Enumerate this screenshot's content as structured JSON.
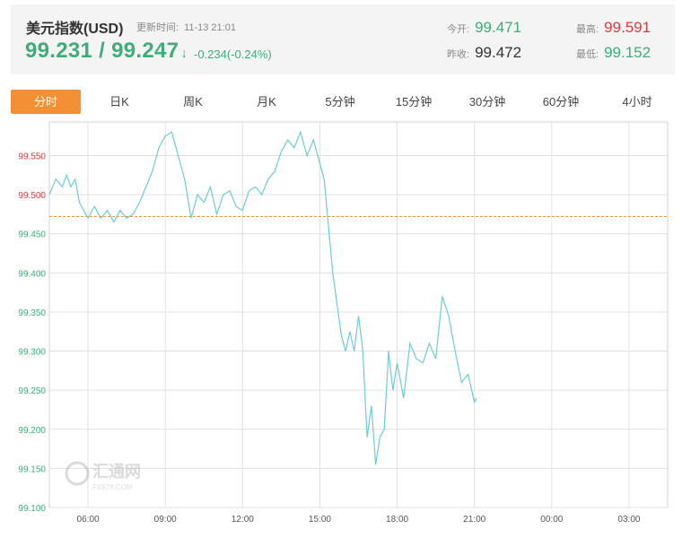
{
  "header": {
    "title": "美元指数(USD)",
    "update_label": "更新时间:",
    "update_time": "11-13 21:01",
    "price": "99.231 / 99.247",
    "arrow": "↓",
    "change": "-0.234(-0.24%)",
    "open_label": "今开:",
    "open_value": "99.471",
    "prev_close_label": "昨收:",
    "prev_close_value": "99.472",
    "high_label": "最高:",
    "high_value": "99.591",
    "low_label": "最低:",
    "low_value": "99.152"
  },
  "tabs": [
    "分时",
    "日K",
    "周K",
    "月K",
    "5分钟",
    "15分钟",
    "30分钟",
    "60分钟",
    "4小时"
  ],
  "active_tab": "分时",
  "watermark": {
    "text": "汇通网",
    "subtext": "FX678.COM"
  },
  "colors": {
    "line": "#6dcbd7",
    "reference": "#f39035",
    "grid": "#e0e0e0",
    "above_ref_label": "#e4393c",
    "below_ref_label": "#3cae78",
    "accent_green": "#3cae78",
    "accent_red": "#e4393c",
    "active_tab": "#f39035"
  },
  "chart_data": {
    "type": "line",
    "title": "",
    "xlabel": "",
    "ylabel": "",
    "x_range": [
      "04:30",
      "04:30 (next day)"
    ],
    "x_ticks": [
      "06:00",
      "09:00",
      "12:00",
      "15:00",
      "18:00",
      "21:00",
      "00:00",
      "03:00"
    ],
    "y_ticks": [
      99.55,
      99.5,
      99.45,
      99.4,
      99.35,
      99.3,
      99.25,
      99.2,
      99.15,
      99.1
    ],
    "y_tick_labels": [
      "99.550",
      "99.500",
      "99.450",
      "99.400",
      "99.350",
      "99.300",
      "99.250",
      "99.200",
      "99.150",
      "99.100"
    ],
    "ylim": [
      99.1,
      99.593
    ],
    "grid": true,
    "reference_line": {
      "value": 99.472,
      "style": "dashed"
    },
    "series": [
      {
        "x": [
          "04:30",
          "04:45",
          "05:00",
          "05:10",
          "05:20",
          "05:30",
          "05:40",
          "05:50",
          "06:00",
          "06:15",
          "06:30",
          "06:45",
          "07:00",
          "07:15",
          "07:30",
          "07:45",
          "08:00",
          "08:15",
          "08:30",
          "08:45",
          "09:00",
          "09:15",
          "09:30",
          "09:45",
          "10:00",
          "10:15",
          "10:30",
          "10:45",
          "11:00",
          "11:15",
          "11:30",
          "11:45",
          "12:00",
          "12:15",
          "12:30",
          "12:45",
          "13:00",
          "13:15",
          "13:30",
          "13:45",
          "14:00",
          "14:15",
          "14:30",
          "14:45",
          "15:00",
          "15:10",
          "15:20",
          "15:30",
          "15:40",
          "15:50",
          "16:00",
          "16:10",
          "16:20",
          "16:30",
          "16:40",
          "16:50",
          "17:00",
          "17:10",
          "17:20",
          "17:30",
          "17:40",
          "17:50",
          "18:00",
          "18:15",
          "18:30",
          "18:45",
          "19:00",
          "19:15",
          "19:30",
          "19:45",
          "20:00",
          "20:15",
          "20:30",
          "20:45",
          "21:00",
          "21:05"
        ],
        "y": [
          99.5,
          99.52,
          99.51,
          99.525,
          99.51,
          99.52,
          99.49,
          99.48,
          99.47,
          99.485,
          99.47,
          99.48,
          99.465,
          99.48,
          99.47,
          99.475,
          99.49,
          99.51,
          99.53,
          99.56,
          99.575,
          99.58,
          99.55,
          99.52,
          99.47,
          99.5,
          99.49,
          99.51,
          99.475,
          99.5,
          99.505,
          99.485,
          99.48,
          99.505,
          99.51,
          99.5,
          99.52,
          99.53,
          99.555,
          99.57,
          99.56,
          99.58,
          99.55,
          99.57,
          99.54,
          99.52,
          99.46,
          99.4,
          99.36,
          99.32,
          99.3,
          99.325,
          99.3,
          99.345,
          99.3,
          99.19,
          99.23,
          99.155,
          99.19,
          99.2,
          99.3,
          99.25,
          99.285,
          99.24,
          99.31,
          99.29,
          99.285,
          99.31,
          99.29,
          99.37,
          99.345,
          99.3,
          99.26,
          99.27,
          99.235,
          99.24
        ]
      }
    ]
  }
}
